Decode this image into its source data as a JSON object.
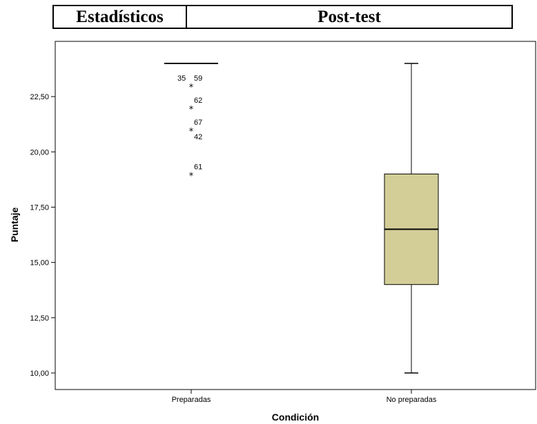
{
  "header": {
    "left_label": "Estadísticos",
    "right_label": "Post-test"
  },
  "chart_data": {
    "type": "boxplot",
    "xlabel": "Condición",
    "ylabel": "Puntaje",
    "ylim": [
      9.5,
      24.5
    ],
    "yticks": [
      10,
      12.5,
      15,
      17.5,
      20,
      22.5
    ],
    "ytick_labels": [
      "10,00",
      "12,50",
      "15,00",
      "17,50",
      "20,00",
      "22,50"
    ],
    "grid": false,
    "box_color": "#d3ce98",
    "categories": [
      "Preparadas",
      "No preparadas"
    ],
    "groups": [
      {
        "category": "Preparadas",
        "min": 24,
        "q1": 24,
        "median": 24,
        "q3": 24,
        "max": 24,
        "outliers": [
          {
            "value": 23,
            "labels": [
              "35",
              "59"
            ]
          },
          {
            "value": 22,
            "labels": [
              "62"
            ]
          },
          {
            "value": 21,
            "labels": [
              "67",
              "42"
            ]
          },
          {
            "value": 19,
            "labels": [
              "61"
            ]
          }
        ]
      },
      {
        "category": "No preparadas",
        "min": 10,
        "q1": 14,
        "median": 16.5,
        "q3": 19,
        "max": 24,
        "outliers": []
      }
    ]
  }
}
